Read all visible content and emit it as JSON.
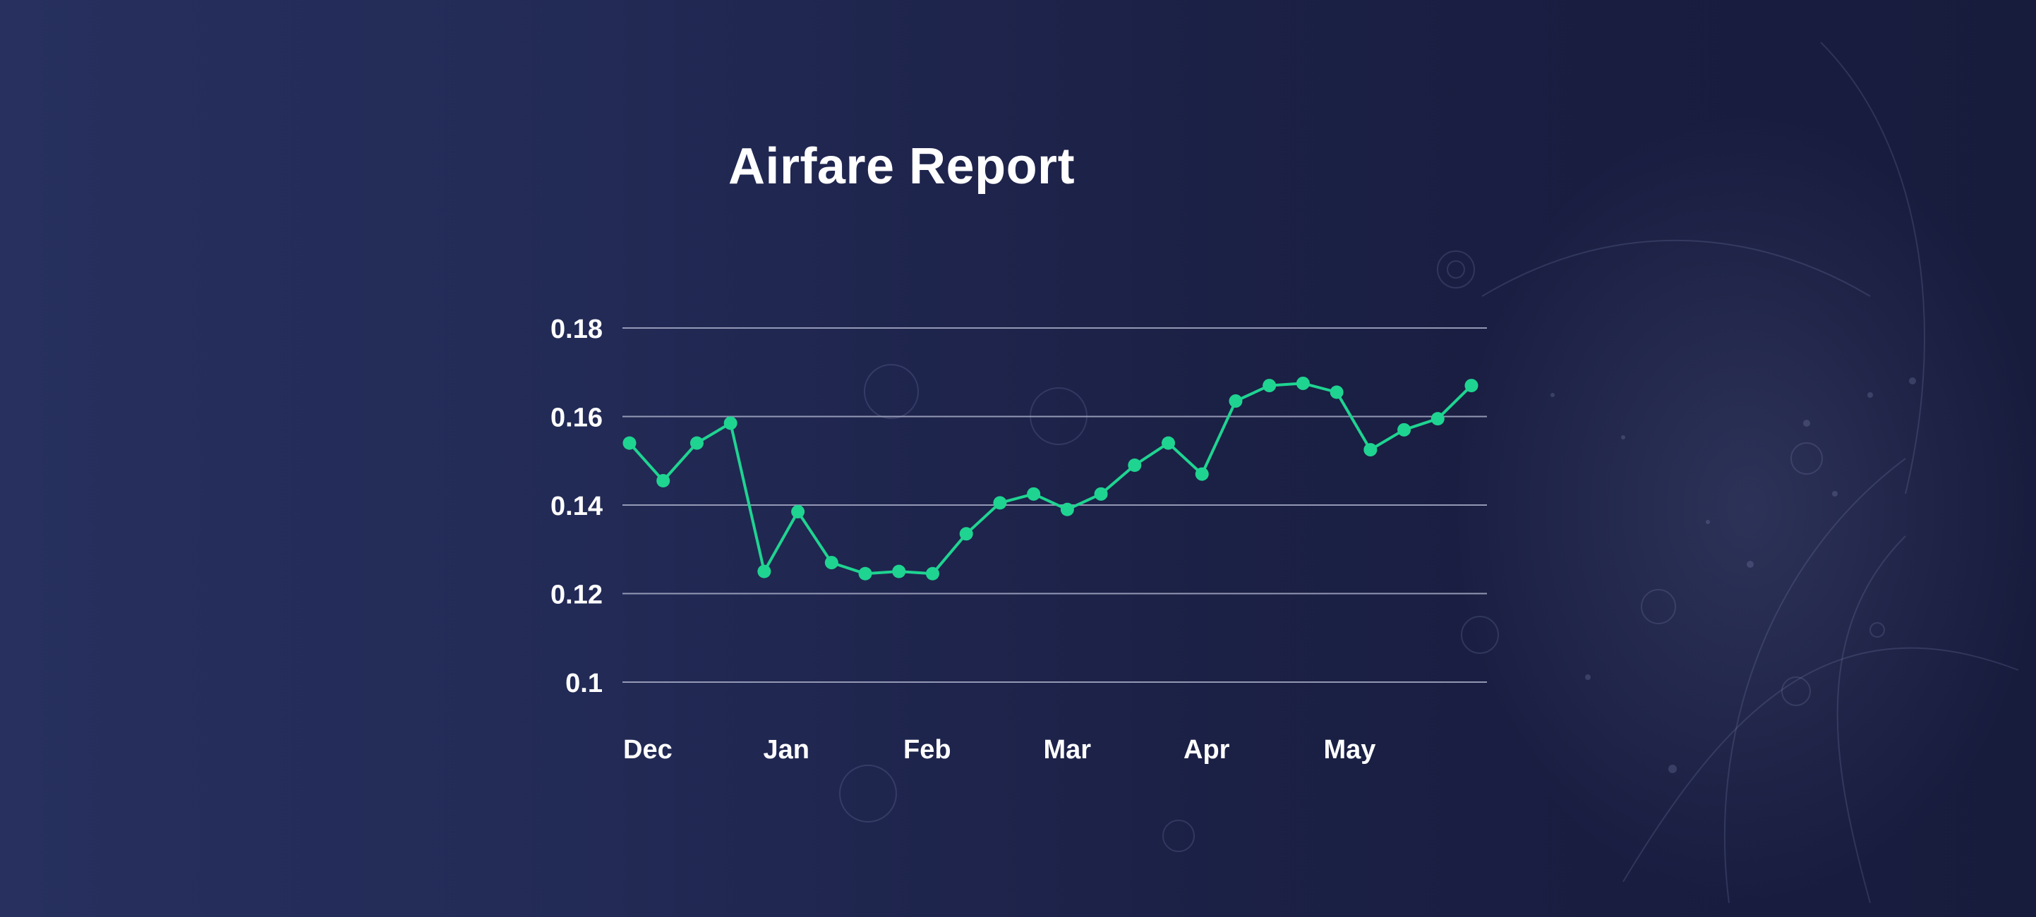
{
  "title": "Airfare Report",
  "colors": {
    "line": "#1fd491",
    "gridline": "#a9aec8",
    "text": "#ffffff"
  },
  "chart_data": {
    "type": "line",
    "title": "Airfare Report",
    "xlabel": "",
    "ylabel": "",
    "ylim": [
      0.1,
      0.18
    ],
    "yticks": [
      0.1,
      0.12,
      0.14,
      0.16,
      0.18
    ],
    "ytick_labels": [
      "0.1",
      "0.12",
      "0.14",
      "0.16",
      "0.18"
    ],
    "xtick_labels": [
      "Dec",
      "Jan",
      "Feb",
      "Mar",
      "Apr",
      "May"
    ],
    "grid": true,
    "legend": "none",
    "series": [
      {
        "values": [
          0.154,
          0.1455,
          0.154,
          0.1585,
          0.125,
          0.1385,
          0.127,
          0.1245,
          0.125,
          0.1245,
          0.1335,
          0.1405,
          0.1425,
          0.139,
          0.1425,
          0.149,
          0.154,
          0.147,
          0.1635,
          0.167,
          0.1675,
          0.1655,
          0.1525,
          0.157,
          0.1595,
          0.167
        ]
      }
    ]
  }
}
